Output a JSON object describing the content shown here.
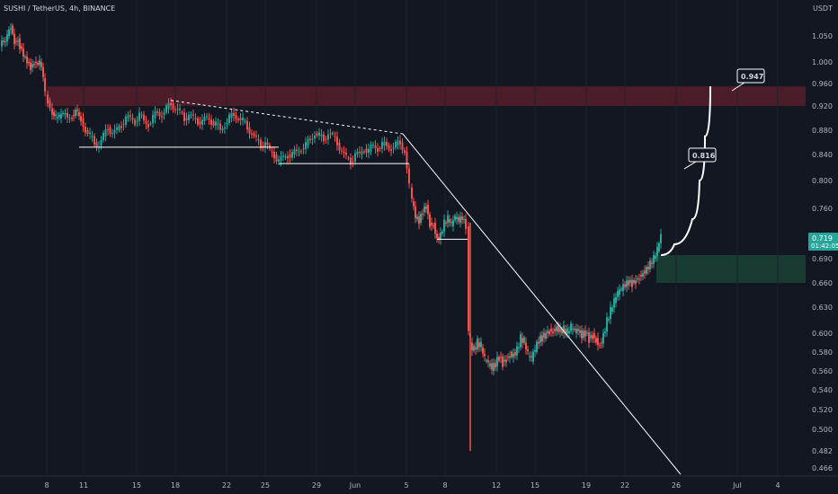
{
  "header": {
    "title": "SUSHI / TetherUS, 4h, BINANCE",
    "currency": "USDT"
  },
  "price_label": {
    "price": "0.719",
    "countdown": "01:42:05"
  },
  "annotations": [
    {
      "text": "0.947",
      "value": 0.947
    },
    {
      "text": "0.816",
      "value": 0.816
    }
  ],
  "colors": {
    "background": "#131722",
    "up": "#26a69a",
    "down": "#ef5350",
    "supply": "#7a2230",
    "demand": "#1b4a37",
    "line": "#ffffff"
  },
  "chart_data": {
    "type": "candlestick",
    "y_ticks": [
      "1.050",
      "1.000",
      "0.960",
      "0.920",
      "0.880",
      "0.840",
      "0.800",
      "0.760",
      "0.690",
      "0.660",
      "0.630",
      "0.600",
      "0.580",
      "0.560",
      "0.540",
      "0.520",
      "0.500",
      "0.482",
      "0.466"
    ],
    "x_ticks": [
      "8",
      "11",
      "15",
      "18",
      "22",
      "25",
      "29",
      "Jun",
      "5",
      "8",
      "12",
      "15",
      "19",
      "22",
      "26",
      "Jul",
      "4"
    ],
    "zones": [
      {
        "name": "supply",
        "from": 0.92,
        "to": 0.955
      },
      {
        "name": "demand",
        "from": 0.66,
        "to": 0.695
      }
    ],
    "series": [
      {
        "kind": "path",
        "points": [
          [
            0,
            1.03
          ],
          [
            8,
            1.05
          ],
          [
            12,
            1.07
          ],
          [
            16,
            1.04
          ],
          [
            20,
            1.045
          ],
          [
            22,
            1.03
          ],
          [
            26,
            1.01
          ],
          [
            30,
            1.0
          ],
          [
            34,
            0.99
          ],
          [
            38,
            1.0
          ],
          [
            44,
            1.0
          ],
          [
            48,
            0.97
          ],
          [
            50,
            0.94
          ],
          [
            53,
            0.93
          ],
          [
            58,
            0.91
          ],
          [
            62,
            0.9
          ],
          [
            66,
            0.9
          ],
          [
            70,
            0.905
          ],
          [
            75,
            0.9
          ],
          [
            80,
            0.905
          ],
          [
            86,
            0.91
          ],
          [
            90,
            0.9
          ],
          [
            95,
            0.88
          ],
          [
            100,
            0.87
          ],
          [
            105,
            0.86
          ],
          [
            110,
            0.855
          ],
          [
            115,
            0.87
          ],
          [
            120,
            0.885
          ],
          [
            125,
            0.875
          ],
          [
            130,
            0.88
          ],
          [
            135,
            0.89
          ],
          [
            140,
            0.9
          ],
          [
            145,
            0.9
          ],
          [
            150,
            0.895
          ],
          [
            155,
            0.905
          ],
          [
            160,
            0.895
          ],
          [
            165,
            0.89
          ],
          [
            170,
            0.9
          ],
          [
            175,
            0.91
          ],
          [
            180,
            0.905
          ],
          [
            185,
            0.915
          ],
          [
            190,
            0.925
          ],
          [
            195,
            0.915
          ],
          [
            200,
            0.91
          ],
          [
            205,
            0.9
          ],
          [
            210,
            0.905
          ],
          [
            215,
            0.9
          ],
          [
            220,
            0.895
          ],
          [
            225,
            0.895
          ],
          [
            230,
            0.9
          ],
          [
            235,
            0.895
          ],
          [
            240,
            0.89
          ],
          [
            245,
            0.88
          ],
          [
            250,
            0.89
          ],
          [
            255,
            0.9
          ],
          [
            260,
            0.905
          ],
          [
            265,
            0.9
          ],
          [
            270,
            0.895
          ],
          [
            275,
            0.885
          ],
          [
            280,
            0.875
          ],
          [
            285,
            0.865
          ],
          [
            290,
            0.855
          ],
          [
            295,
            0.86
          ],
          [
            300,
            0.845
          ],
          [
            305,
            0.84
          ],
          [
            310,
            0.83
          ],
          [
            315,
            0.835
          ],
          [
            320,
            0.84
          ],
          [
            325,
            0.84
          ],
          [
            330,
            0.845
          ],
          [
            335,
            0.85
          ],
          [
            340,
            0.855
          ],
          [
            345,
            0.865
          ],
          [
            350,
            0.875
          ],
          [
            355,
            0.87
          ],
          [
            360,
            0.865
          ],
          [
            365,
            0.875
          ],
          [
            370,
            0.87
          ],
          [
            375,
            0.86
          ],
          [
            380,
            0.845
          ],
          [
            385,
            0.835
          ],
          [
            390,
            0.83
          ],
          [
            395,
            0.84
          ],
          [
            400,
            0.84
          ],
          [
            405,
            0.85
          ],
          [
            410,
            0.845
          ],
          [
            415,
            0.855
          ],
          [
            420,
            0.85
          ],
          [
            425,
            0.855
          ],
          [
            430,
            0.855
          ],
          [
            435,
            0.85
          ],
          [
            440,
            0.855
          ],
          [
            445,
            0.86
          ],
          [
            450,
            0.845
          ],
          [
            455,
            0.79
          ],
          [
            458,
            0.77
          ],
          [
            462,
            0.745
          ],
          [
            466,
            0.74
          ],
          [
            470,
            0.755
          ],
          [
            474,
            0.765
          ],
          [
            478,
            0.74
          ],
          [
            482,
            0.74
          ],
          [
            486,
            0.72
          ],
          [
            490,
            0.725
          ],
          [
            494,
            0.74
          ],
          [
            498,
            0.745
          ],
          [
            502,
            0.735
          ],
          [
            506,
            0.745
          ],
          [
            510,
            0.74
          ],
          [
            514,
            0.745
          ],
          [
            518,
            0.735
          ],
          [
            521,
            0.6
          ],
          [
            523,
            0.59
          ],
          [
            527,
            0.585
          ],
          [
            531,
            0.59
          ],
          [
            535,
            0.585
          ],
          [
            539,
            0.57
          ],
          [
            543,
            0.565
          ],
          [
            547,
            0.56
          ],
          [
            551,
            0.565
          ],
          [
            555,
            0.575
          ],
          [
            559,
            0.57
          ],
          [
            563,
            0.575
          ],
          [
            567,
            0.58
          ],
          [
            571,
            0.58
          ],
          [
            575,
            0.585
          ],
          [
            579,
            0.595
          ],
          [
            583,
            0.59
          ],
          [
            587,
            0.575
          ],
          [
            591,
            0.57
          ],
          [
            595,
            0.58
          ],
          [
            599,
            0.59
          ],
          [
            603,
            0.595
          ],
          [
            607,
            0.6
          ],
          [
            611,
            0.605
          ],
          [
            615,
            0.605
          ],
          [
            619,
            0.61
          ],
          [
            623,
            0.605
          ],
          [
            627,
            0.605
          ],
          [
            631,
            0.6
          ],
          [
            635,
            0.605
          ],
          [
            639,
            0.6
          ],
          [
            643,
            0.6
          ],
          [
            647,
            0.595
          ],
          [
            651,
            0.6
          ],
          [
            655,
            0.595
          ],
          [
            659,
            0.6
          ],
          [
            663,
            0.595
          ],
          [
            667,
            0.59
          ],
          [
            671,
            0.6
          ],
          [
            675,
            0.615
          ],
          [
            679,
            0.625
          ],
          [
            683,
            0.635
          ],
          [
            687,
            0.645
          ],
          [
            691,
            0.65
          ],
          [
            695,
            0.655
          ],
          [
            699,
            0.66
          ],
          [
            703,
            0.66
          ],
          [
            707,
            0.665
          ],
          [
            711,
            0.67
          ],
          [
            715,
            0.675
          ],
          [
            719,
            0.68
          ],
          [
            723,
            0.685
          ],
          [
            727,
            0.69
          ],
          [
            731,
            0.7
          ],
          [
            735,
            0.719
          ]
        ]
      }
    ],
    "wick_low": {
      "x": 523,
      "value": 0.482
    },
    "trendlines": [
      {
        "from": [
          88,
          0.852
        ],
        "to": [
          310,
          0.852
        ]
      },
      {
        "from": [
          310,
          0.826
        ],
        "to": [
          455,
          0.826
        ]
      },
      {
        "from": [
          486,
          0.717
        ],
        "to": [
          520,
          0.717
        ]
      },
      {
        "from": [
          190,
          0.93
        ],
        "to": [
          448,
          0.874
        ],
        "dashed": true
      },
      {
        "from": [
          448,
          0.874
        ],
        "to": [
          757,
          0.46
        ]
      }
    ],
    "projection": [
      [
        735,
        0.695
      ],
      [
        750,
        0.71
      ],
      [
        770,
        0.745
      ],
      [
        778,
        0.8
      ],
      [
        784,
        0.87
      ],
      [
        790,
        0.955
      ]
    ]
  }
}
